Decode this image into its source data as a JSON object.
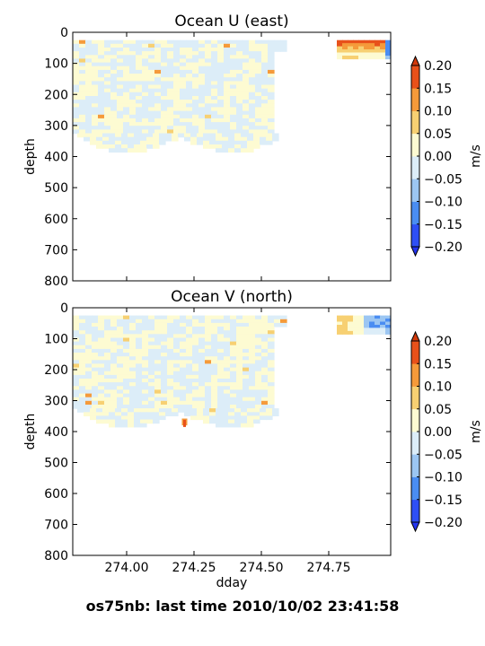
{
  "footer": "os75nb: last time 2010/10/02 23:41:58",
  "chart_data": [
    {
      "type": "heatmap",
      "title": "Ocean U (east)",
      "xlabel": "",
      "ylabel": "depth",
      "xlim": [
        273.8,
        274.98
      ],
      "ylim": [
        800,
        0
      ],
      "yticks": [
        "0",
        "100",
        "200",
        "300",
        "400",
        "500",
        "600",
        "700",
        "800"
      ],
      "xticks": [],
      "grid": false,
      "data_region": {
        "x": [
          273.8,
          274.59
        ],
        "depth": [
          25,
          380
        ]
      },
      "colorbar": {
        "label": "m/s",
        "ticks": [
          "0.20",
          "0.15",
          "0.10",
          "0.05",
          "0.00",
          "−0.05",
          "−0.10",
          "−0.15",
          "−0.20"
        ],
        "levels": [
          -0.2,
          -0.15,
          -0.1,
          -0.05,
          0.0,
          0.05,
          0.1,
          0.15,
          0.2
        ],
        "colors": [
          "#2e4ff5",
          "#4a8df2",
          "#9cc6f2",
          "#dcedf8",
          "#fdfbd2",
          "#f7d072",
          "#f59a3a",
          "#e8511a"
        ]
      }
    },
    {
      "type": "heatmap",
      "title": "Ocean V (north)",
      "xlabel": "dday",
      "ylabel": "depth",
      "xlim": [
        273.8,
        274.98
      ],
      "ylim": [
        800,
        0
      ],
      "yticks": [
        "0",
        "100",
        "200",
        "300",
        "400",
        "500",
        "600",
        "700",
        "800"
      ],
      "xticks": [
        "274.00",
        "274.25",
        "274.50",
        "274.75"
      ],
      "grid": false,
      "data_region": {
        "x": [
          273.8,
          274.59
        ],
        "depth": [
          25,
          380
        ]
      },
      "colorbar": {
        "label": "m/s",
        "ticks": [
          "0.20",
          "0.15",
          "0.10",
          "0.05",
          "0.00",
          "−0.05",
          "−0.10",
          "−0.15",
          "−0.20"
        ],
        "levels": [
          -0.2,
          -0.15,
          -0.1,
          -0.05,
          0.0,
          0.05,
          0.1,
          0.15,
          0.2
        ],
        "colors": [
          "#2e4ff5",
          "#4a8df2",
          "#9cc6f2",
          "#dcedf8",
          "#fdfbd2",
          "#f7d072",
          "#f59a3a",
          "#e8511a"
        ]
      }
    }
  ]
}
